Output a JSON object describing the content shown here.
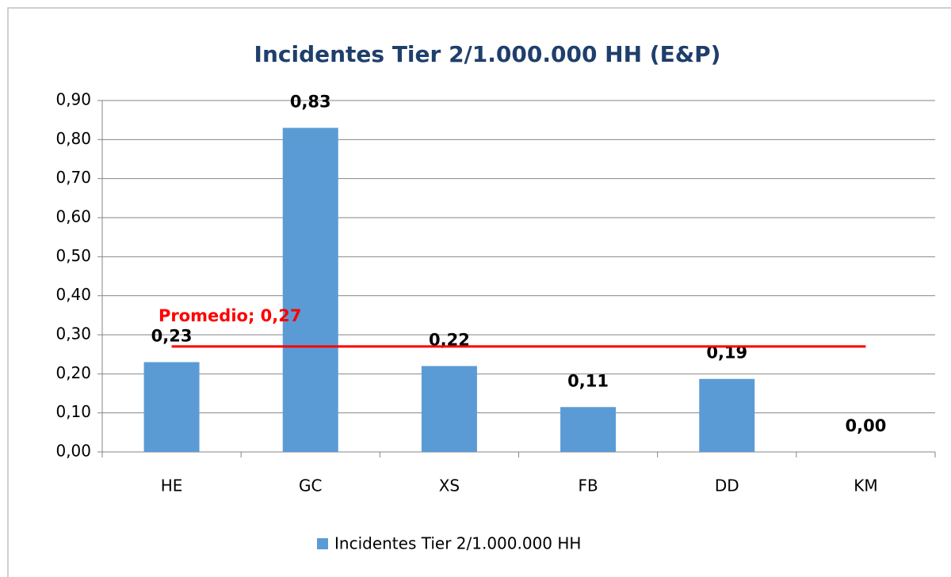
{
  "chart_data": {
    "type": "bar",
    "title": "Incidentes Tier 2/1.000.000 HH (E&P)",
    "categories": [
      "HE",
      "GC",
      "XS",
      "FB",
      "DD",
      "KM"
    ],
    "series": [
      {
        "name": "Incidentes Tier 2/1.000.000 HH",
        "color": "#5b9bd5",
        "values": [
          0.23,
          0.83,
          0.22,
          0.115,
          0.187,
          0
        ],
        "value_labels": [
          "0,23",
          "0,83",
          "0,22",
          "0,11",
          "0,19",
          "0,00"
        ]
      }
    ],
    "average": {
      "value": 0.27,
      "label": "Promedio; 0,27",
      "color": "#ff0000"
    },
    "ylim": [
      0,
      0.9
    ],
    "yticks": [
      {
        "value": 0,
        "label": "0,00"
      },
      {
        "value": 0.1,
        "label": "0,10"
      },
      {
        "value": 0.2,
        "label": "0,20"
      },
      {
        "value": 0.3,
        "label": "0,30"
      },
      {
        "value": 0.4,
        "label": "0,40"
      },
      {
        "value": 0.5,
        "label": "0,50"
      },
      {
        "value": 0.6,
        "label": "0,60"
      },
      {
        "value": 0.7,
        "label": "0,70"
      },
      {
        "value": 0.8,
        "label": "0,80"
      },
      {
        "value": 0.9,
        "label": "0,90"
      }
    ],
    "grid": true,
    "legend": "bottom"
  }
}
